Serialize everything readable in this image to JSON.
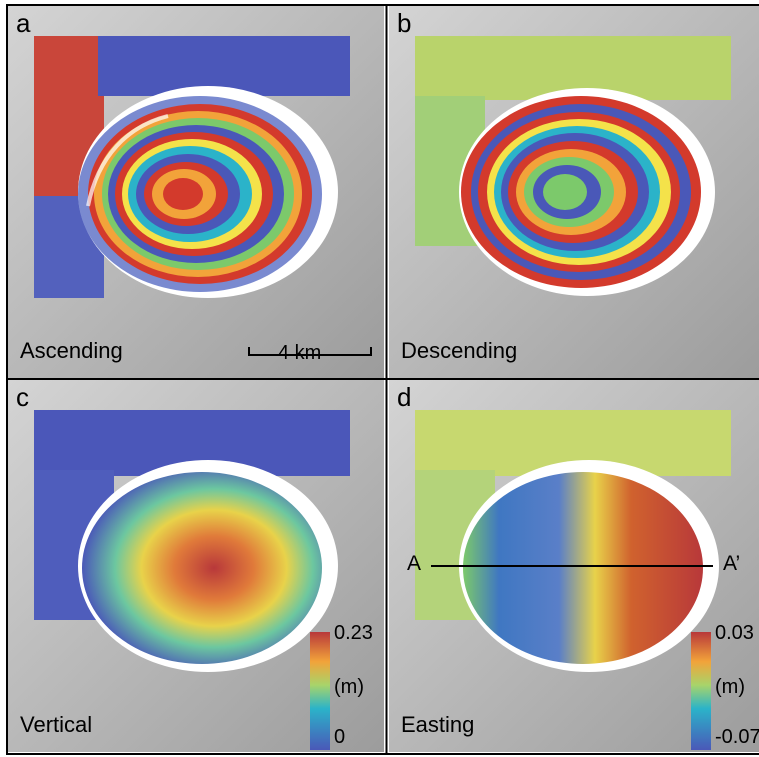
{
  "panels": [
    {
      "letter": "a",
      "title": "Ascending"
    },
    {
      "letter": "b",
      "title": "Descending"
    },
    {
      "letter": "c",
      "title": "Vertical"
    },
    {
      "letter": "d",
      "title": "Easting"
    }
  ],
  "scale_bar": {
    "label": "4 km"
  },
  "colorbars": {
    "vertical": {
      "max": "0.23",
      "unit": "(m)",
      "min": "0"
    },
    "easting": {
      "max": "0.03",
      "unit": "(m)",
      "min": "-0.07"
    }
  },
  "profile": {
    "start": "A",
    "end": "A’"
  },
  "colors": {
    "background": "#bdbdbd",
    "fringe_palette": [
      "#d33a2c",
      "#f2a33a",
      "#f4e24a",
      "#7cc96b",
      "#2bb3c9",
      "#4a58b8"
    ]
  }
}
